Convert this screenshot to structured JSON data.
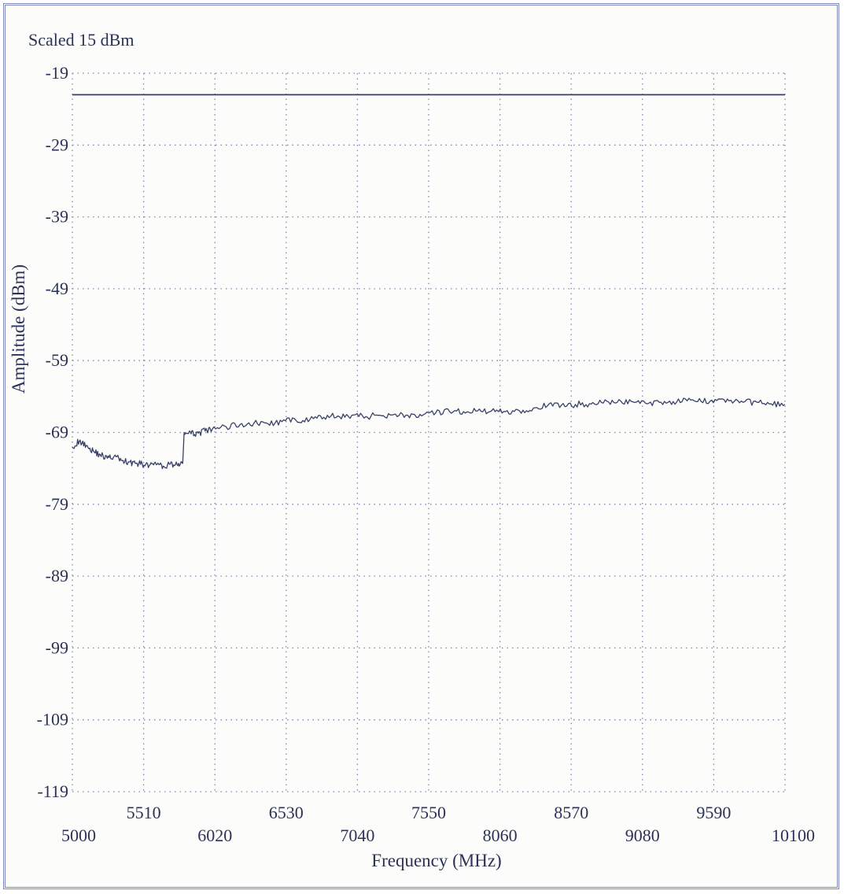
{
  "chart_data": {
    "type": "line",
    "title": "Scaled 15 dBm",
    "xlabel": "Frequency (MHz)",
    "ylabel": "Amplitude (dBm)",
    "xlim": [
      5000,
      10100
    ],
    "ylim": [
      -119,
      -19
    ],
    "y_ticks": [
      "-19",
      "-29",
      "-39",
      "-49",
      "-59",
      "-69",
      "-79",
      "-89",
      "-99",
      "-109",
      "-119"
    ],
    "x_ticks_lower": [
      "5000",
      "6020",
      "7040",
      "8060",
      "9080",
      "10100"
    ],
    "x_ticks_upper": [
      "5510",
      "6530",
      "7550",
      "8570",
      "9590"
    ],
    "grid": "dotted",
    "legend": "none",
    "series": [
      {
        "color": "#3a4068",
        "x": [
          5000,
          10100
        ],
        "y": [
          -22,
          -22
        ]
      },
      {
        "color": "#3a4068",
        "x": [
          5000,
          5050,
          5100,
          5150,
          5200,
          5250,
          5300,
          5350,
          5400,
          5450,
          5500,
          5550,
          5600,
          5650,
          5700,
          5750,
          5790,
          5800,
          5850,
          5900,
          5950,
          6000,
          6100,
          6200,
          6300,
          6400,
          6500,
          6600,
          6700,
          6800,
          6900,
          7000,
          7100,
          7200,
          7300,
          7400,
          7500,
          7600,
          7700,
          7800,
          7900,
          8000,
          8100,
          8200,
          8300,
          8400,
          8500,
          8600,
          8700,
          8800,
          8900,
          9000,
          9100,
          9200,
          9300,
          9400,
          9500,
          9600,
          9700,
          9800,
          9900,
          10000,
          10100
        ],
        "y": [
          -71.0,
          -70.2,
          -70.8,
          -71.6,
          -72.1,
          -72.6,
          -72.3,
          -72.9,
          -73.1,
          -73.3,
          -73.4,
          -73.6,
          -73.5,
          -73.7,
          -73.4,
          -73.5,
          -73.3,
          -69.0,
          -69.2,
          -69.1,
          -68.8,
          -68.6,
          -68.2,
          -67.9,
          -67.7,
          -67.8,
          -67.5,
          -67.3,
          -67.2,
          -66.9,
          -66.7,
          -66.6,
          -66.8,
          -66.6,
          -66.5,
          -66.6,
          -66.7,
          -66.3,
          -66.1,
          -66.1,
          -66.0,
          -66.0,
          -66.1,
          -66.0,
          -65.6,
          -65.3,
          -65.2,
          -65.1,
          -65.0,
          -64.9,
          -64.8,
          -64.7,
          -64.9,
          -64.8,
          -64.7,
          -64.6,
          -64.7,
          -64.4,
          -64.6,
          -64.8,
          -64.8,
          -65.0,
          -65.1
        ]
      }
    ]
  }
}
